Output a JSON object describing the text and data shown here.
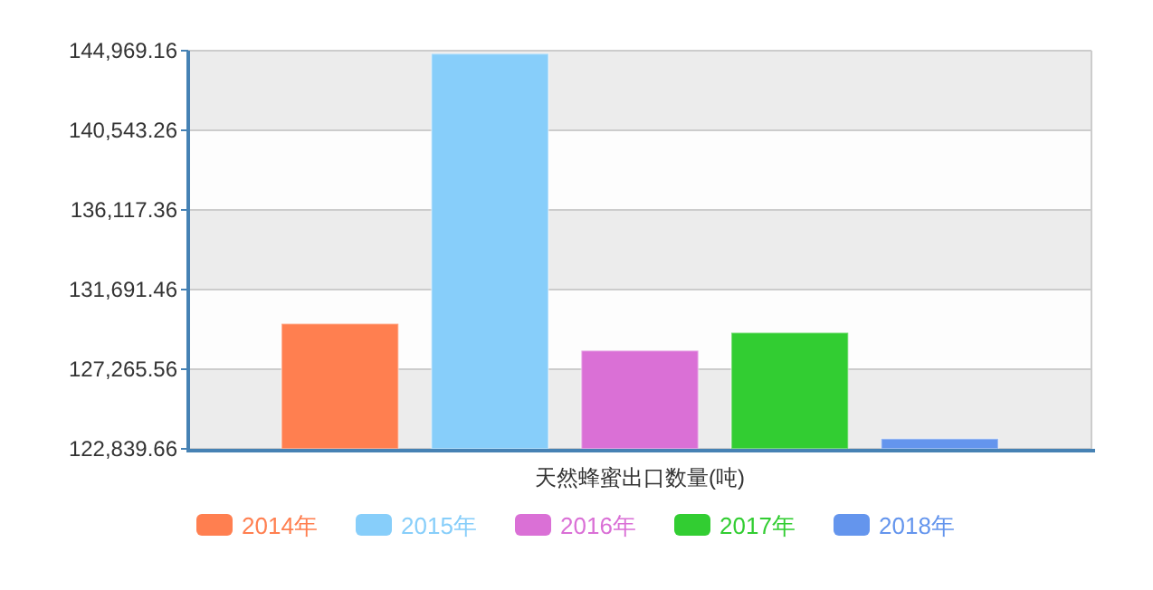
{
  "chart_data": {
    "type": "bar",
    "categories": [
      "天然蜂蜜出口数量(吨)"
    ],
    "series": [
      {
        "name": "2014年",
        "color": "#ff7f50",
        "values": [
          129800
        ]
      },
      {
        "name": "2015年",
        "color": "#87cefa",
        "values": [
          144800
        ]
      },
      {
        "name": "2016年",
        "color": "#da70d6",
        "values": [
          128300
        ]
      },
      {
        "name": "2017年",
        "color": "#32cd32",
        "values": [
          129300
        ]
      },
      {
        "name": "2018年",
        "color": "#6495ed",
        "values": [
          123400
        ]
      }
    ],
    "ylim": [
      122839.66,
      144969.16
    ],
    "yticks": [
      {
        "value": 122839.66,
        "label": "122,839.66"
      },
      {
        "value": 127265.56,
        "label": "127,265.56"
      },
      {
        "value": 131691.46,
        "label": "131,691.46"
      },
      {
        "value": 136117.36,
        "label": "136,117.36"
      },
      {
        "value": 140543.26,
        "label": "140,543.26"
      },
      {
        "value": 144969.16,
        "label": "144,969.16"
      }
    ],
    "grid": "y",
    "legend": "bottom"
  }
}
